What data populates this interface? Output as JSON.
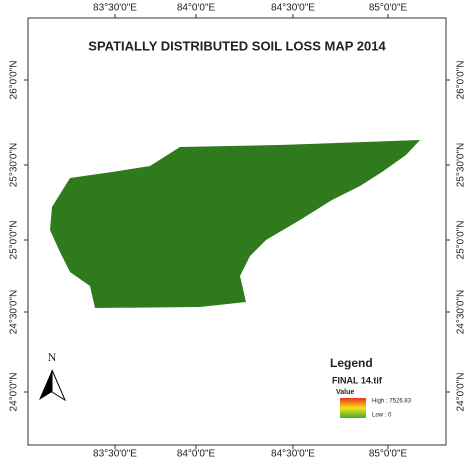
{
  "map": {
    "title": "SPATIALLY DISTRIBUTED SOIL LOSS  MAP 2014",
    "top_longitudes": [
      "83°30'0\"E",
      "84°0'0\"E",
      "84°30'0\"E",
      "85°0'0\"E"
    ],
    "bottom_longitudes": [
      "83°30'0\"E",
      "84°0'0\"E",
      "84°30'0\"E",
      "85°0'0\"E"
    ],
    "left_latitudes": [
      "26°0'0\"N",
      "25°30'0\"N",
      "25°0'0\"N",
      "24°30'0\"N",
      "24°0'0\"N"
    ],
    "right_latitudes": [
      "26°0'0\"N",
      "25°30'0\"N",
      "25°0'0\"N",
      "24°30'0\"N",
      "24°0'0\"N"
    ],
    "north_label": "N",
    "legend": {
      "title": "Legend",
      "layer": "FINAL 14.tif",
      "field": "Value",
      "high": "High : 7526.83",
      "low": "Low : 0"
    }
  }
}
